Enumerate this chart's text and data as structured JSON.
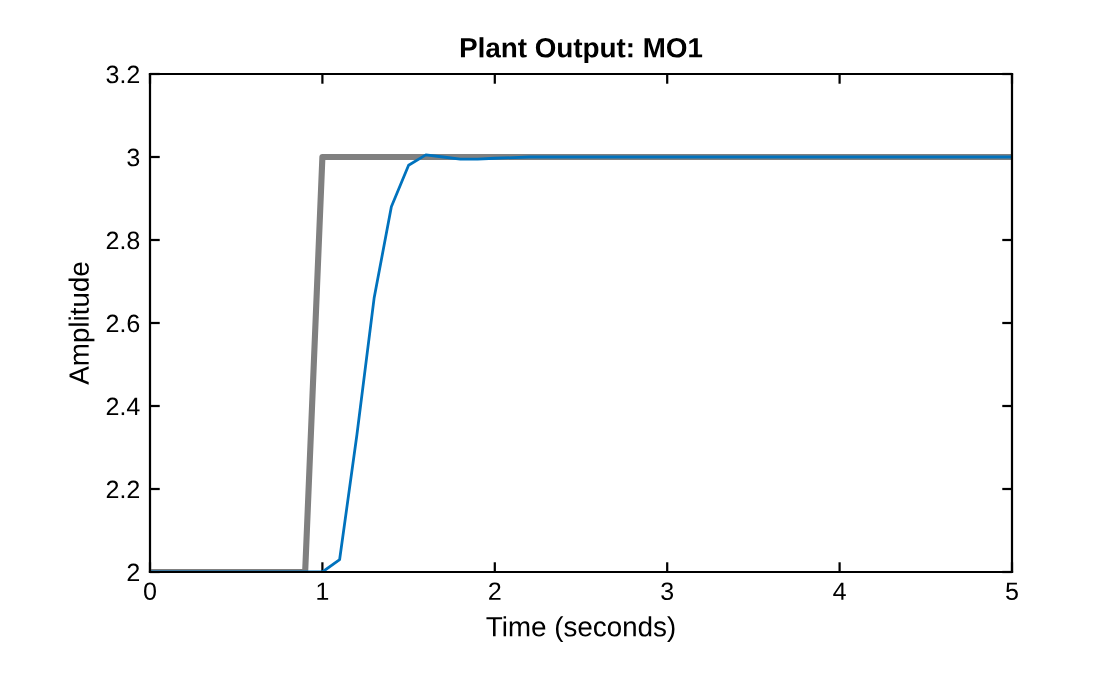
{
  "chart_data": {
    "type": "line",
    "title": "Plant Output: MO1",
    "xlabel": "Time (seconds)",
    "ylabel": "Amplitude",
    "series": [
      {
        "color": "#808080",
        "x": [
          0,
          0.9,
          1.0,
          5
        ],
        "values": [
          2,
          2,
          3,
          3
        ]
      },
      {
        "color": "#0072bd",
        "x": [
          0,
          1.0,
          1.1,
          1.2,
          1.3,
          1.4,
          1.5,
          1.6,
          1.7,
          1.8,
          1.9,
          2.0,
          2.2,
          5
        ],
        "values": [
          2,
          2,
          2.03,
          2.33,
          2.66,
          2.88,
          2.98,
          3.005,
          3.0,
          2.995,
          2.995,
          2.997,
          3.0,
          3.0
        ]
      }
    ],
    "xlim": [
      0,
      5
    ],
    "xticks": [
      0,
      1,
      2,
      3,
      4,
      5
    ],
    "ylim": [
      2,
      3.2
    ],
    "yticks": [
      2,
      2.2,
      2.4,
      2.6,
      2.8,
      3,
      3.2
    ],
    "grid": false,
    "legend": false
  }
}
